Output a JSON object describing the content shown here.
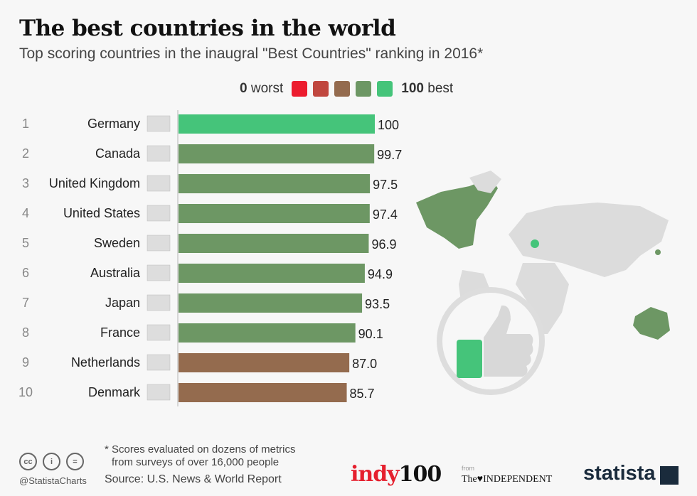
{
  "header": {
    "title": "The best countries in the world",
    "subtitle": "Top scoring countries in the inaugral \"Best Countries\" ranking in 2016*"
  },
  "legend": {
    "low_num": "0",
    "low": "worst",
    "high_num": "100",
    "high": "best",
    "colors": [
      "#ec1c2e",
      "#c0473f",
      "#946b4e",
      "#6d9764",
      "#45c47a"
    ]
  },
  "chart_data": {
    "type": "bar",
    "orientation": "horizontal",
    "title": "The best countries in the world",
    "xlim": [
      0,
      100
    ],
    "ranks": [
      "1",
      "2",
      "3",
      "4",
      "5",
      "6",
      "7",
      "8",
      "9",
      "10"
    ],
    "categories": [
      "Germany",
      "Canada",
      "United Kingdom",
      "United States",
      "Sweden",
      "Australia",
      "Japan",
      "France",
      "Netherlands",
      "Denmark"
    ],
    "values": [
      100,
      99.7,
      97.5,
      97.4,
      96.9,
      94.9,
      93.5,
      90.1,
      87.0,
      85.7
    ],
    "labels": [
      "100",
      "99.7",
      "97.5",
      "97.4",
      "96.9",
      "94.9",
      "93.5",
      "90.1",
      "87.0",
      "85.7"
    ],
    "colors": [
      "#45c47a",
      "#6d9764",
      "#6d9764",
      "#6d9764",
      "#6d9764",
      "#6d9764",
      "#6d9764",
      "#6d9764",
      "#946b4e",
      "#946b4e"
    ]
  },
  "footer": {
    "note1": "* Scores evaluated on dozens of metrics",
    "note2": "from surveys of over 16,000 people",
    "source": "Source: U.S. News & World Report",
    "handle": "@StatistaCharts",
    "indy": "indy",
    "indy100": "100",
    "from": "from",
    "independent": "The♥INDEPENDENT",
    "statista": "statista"
  }
}
